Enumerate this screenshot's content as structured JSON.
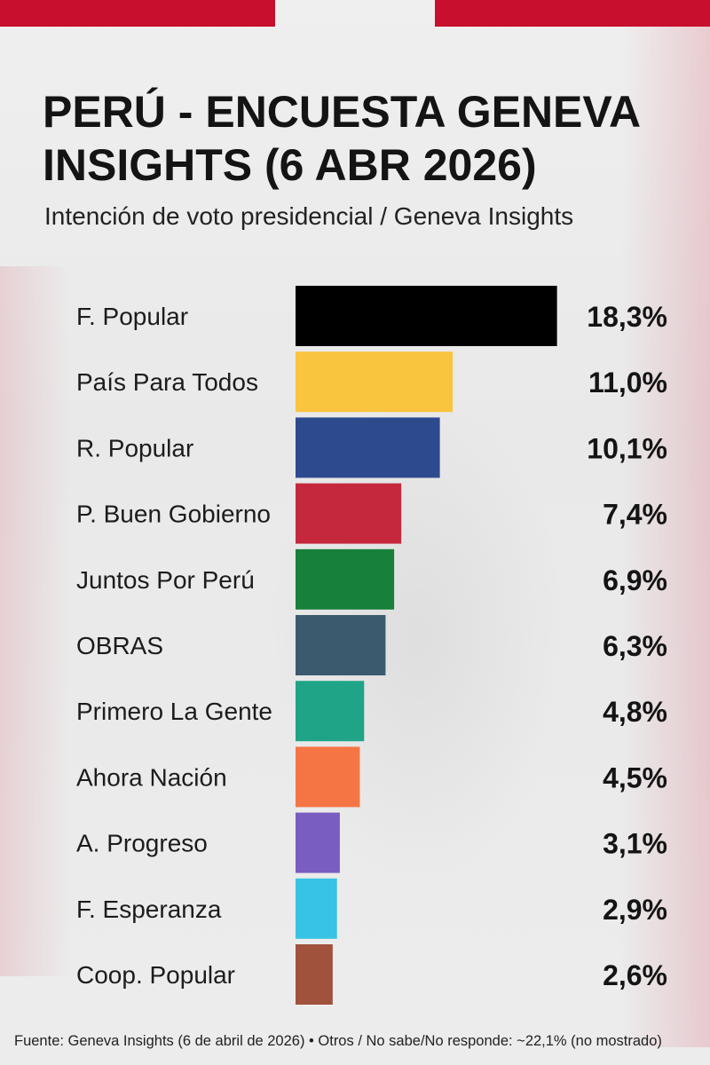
{
  "header": {
    "title": "PERÚ - ENCUESTA GENEVA INSIGHTS (6 ABR 2026)",
    "subtitle": "Intención de voto presidencial / Geneva Insights"
  },
  "footer": {
    "source": "Fuente: Geneva Insights (6 de abril de 2026) • Otros / No sabe/No responde: ~22,1% (no mostrado)"
  },
  "chart_data": {
    "type": "bar",
    "orientation": "horizontal",
    "title": "PERÚ - ENCUESTA GENEVA INSIGHTS (6 ABR 2026)",
    "subtitle": "Intención de voto presidencial / Geneva Insights",
    "grid": false,
    "legend": "none",
    "categories": [
      "F. Popular",
      "País Para Todos",
      "R. Popular",
      "P. Buen Gobierno",
      "Juntos Por Perú",
      "OBRAS",
      "Primero La Gente",
      "Ahora Nación",
      "A. Progreso",
      "F. Esperanza",
      "Coop. Popular"
    ],
    "values": [
      18.3,
      11.0,
      10.1,
      7.4,
      6.9,
      6.3,
      4.8,
      4.5,
      3.1,
      2.9,
      2.6
    ],
    "labels": [
      "18,3%",
      "11,0%",
      "10,1%",
      "7,4%",
      "6,9%",
      "6,3%",
      "4,8%",
      "4,5%",
      "3,1%",
      "2,9%",
      "2,6%"
    ],
    "colors": [
      "#000000",
      "#f9c43e",
      "#2e4a8f",
      "#c5283d",
      "#17803a",
      "#3b5a6e",
      "#20a487",
      "#f57545",
      "#7a5dc0",
      "#37c3e3",
      "#a0523d"
    ]
  }
}
